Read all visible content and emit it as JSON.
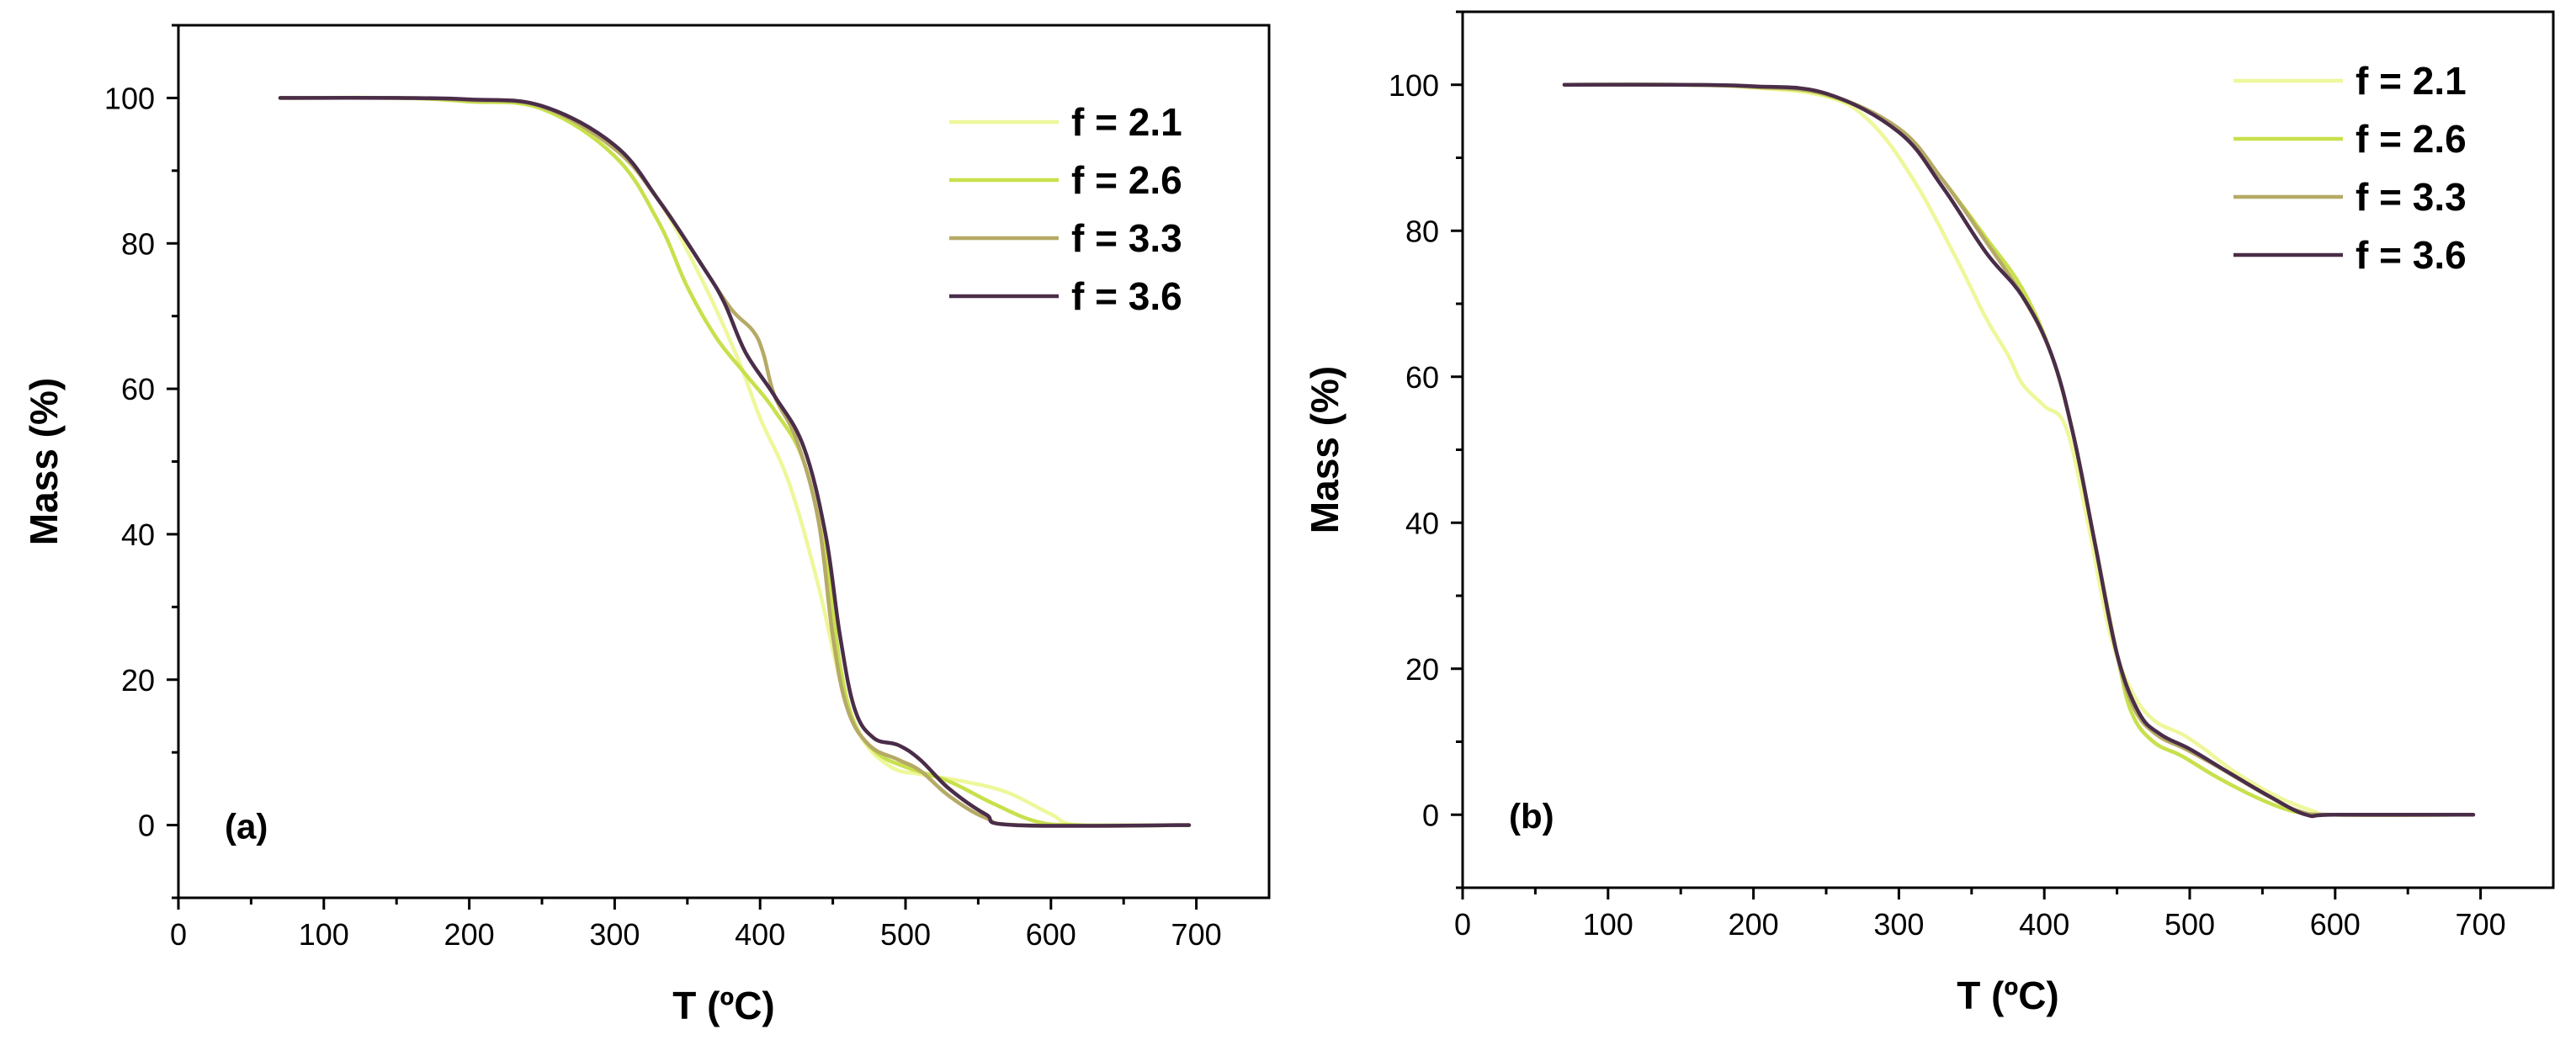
{
  "chart_data": [
    {
      "type": "line",
      "panel": "(a)",
      "xlabel": "T (ºC)",
      "ylabel": "Mass (%)",
      "xlim": [
        0,
        750
      ],
      "ylim": [
        -10,
        110
      ],
      "xticks": [
        0,
        100,
        200,
        300,
        400,
        500,
        600,
        700
      ],
      "yticks": [
        0,
        20,
        40,
        60,
        80,
        100
      ],
      "legend_position": "top-right",
      "series": [
        {
          "name": "f = 2.1",
          "color": "#eef79a",
          "points": [
            [
              70,
              100
            ],
            [
              150,
              100
            ],
            [
              200,
              99.6
            ],
            [
              250,
              98.6
            ],
            [
              300,
              93
            ],
            [
              330,
              86
            ],
            [
              360,
              75
            ],
            [
              385,
              64
            ],
            [
              400,
              56
            ],
            [
              420,
              47
            ],
            [
              440,
              33
            ],
            [
              455,
              20
            ],
            [
              470,
              12
            ],
            [
              490,
              8
            ],
            [
              510,
              7
            ],
            [
              540,
              6
            ],
            [
              570,
              4.5
            ],
            [
              600,
              1.5
            ],
            [
              620,
              0
            ],
            [
              695,
              0
            ]
          ]
        },
        {
          "name": "f = 2.6",
          "color": "#c8e04c",
          "points": [
            [
              70,
              100
            ],
            [
              150,
              100
            ],
            [
              200,
              99.5
            ],
            [
              250,
              98.5
            ],
            [
              300,
              92
            ],
            [
              330,
              83
            ],
            [
              350,
              74
            ],
            [
              370,
              67
            ],
            [
              390,
              62
            ],
            [
              410,
              57
            ],
            [
              430,
              50
            ],
            [
              445,
              37
            ],
            [
              455,
              22
            ],
            [
              465,
              14
            ],
            [
              480,
              10
            ],
            [
              500,
              8
            ],
            [
              530,
              6
            ],
            [
              560,
              3
            ],
            [
              590,
              0.5
            ],
            [
              620,
              0
            ],
            [
              695,
              0
            ]
          ]
        },
        {
          "name": "f = 3.3",
          "color": "#b5aa66",
          "points": [
            [
              70,
              100
            ],
            [
              150,
              100
            ],
            [
              200,
              99.7
            ],
            [
              250,
              98.8
            ],
            [
              300,
              93
            ],
            [
              330,
              86
            ],
            [
              360,
              77
            ],
            [
              380,
              71
            ],
            [
              395,
              68
            ],
            [
              402,
              65
            ],
            [
              410,
              59
            ],
            [
              425,
              53
            ],
            [
              440,
              42
            ],
            [
              450,
              26
            ],
            [
              460,
              16
            ],
            [
              475,
              11
            ],
            [
              495,
              9
            ],
            [
              510,
              7.5
            ],
            [
              530,
              4
            ],
            [
              555,
              1
            ],
            [
              580,
              0
            ],
            [
              695,
              0
            ]
          ]
        },
        {
          "name": "f = 3.6",
          "color": "#4a2d49",
          "points": [
            [
              70,
              100
            ],
            [
              150,
              100
            ],
            [
              200,
              99.8
            ],
            [
              250,
              98.9
            ],
            [
              300,
              93.5
            ],
            [
              330,
              86
            ],
            [
              360,
              77
            ],
            [
              375,
              72
            ],
            [
              390,
              65
            ],
            [
              410,
              59
            ],
            [
              430,
              52
            ],
            [
              445,
              40
            ],
            [
              455,
              26
            ],
            [
              465,
              16
            ],
            [
              478,
              12
            ],
            [
              495,
              11
            ],
            [
              510,
              9
            ],
            [
              530,
              5
            ],
            [
              555,
              1.5
            ],
            [
              575,
              0
            ],
            [
              695,
              0
            ]
          ]
        }
      ]
    },
    {
      "type": "line",
      "panel": "(b)",
      "xlabel": "T (ºC)",
      "ylabel": "Mass (%)",
      "xlim": [
        0,
        750
      ],
      "ylim": [
        -10,
        110
      ],
      "xticks": [
        0,
        100,
        200,
        300,
        400,
        500,
        600,
        700
      ],
      "yticks": [
        0,
        20,
        40,
        60,
        80,
        100
      ],
      "legend_position": "top-right",
      "series": [
        {
          "name": "f = 2.1",
          "color": "#eef79a",
          "points": [
            [
              70,
              100
            ],
            [
              150,
              100
            ],
            [
              200,
              99.6
            ],
            [
              250,
              98.4
            ],
            [
              280,
              95
            ],
            [
              310,
              87
            ],
            [
              340,
              76
            ],
            [
              360,
              68
            ],
            [
              375,
              63
            ],
            [
              385,
              59
            ],
            [
              400,
              56
            ],
            [
              415,
              53
            ],
            [
              430,
              40
            ],
            [
              445,
              25
            ],
            [
              460,
              17
            ],
            [
              475,
              13
            ],
            [
              495,
              11
            ],
            [
              510,
              9
            ],
            [
              530,
              6
            ],
            [
              560,
              2.5
            ],
            [
              585,
              0.5
            ],
            [
              600,
              0
            ],
            [
              695,
              0
            ]
          ]
        },
        {
          "name": "f = 2.6",
          "color": "#c8e04c",
          "points": [
            [
              70,
              100
            ],
            [
              150,
              100
            ],
            [
              200,
              99.7
            ],
            [
              250,
              98.6
            ],
            [
              300,
              94
            ],
            [
              330,
              87
            ],
            [
              360,
              79
            ],
            [
              385,
              72
            ],
            [
              405,
              63
            ],
            [
              420,
              52
            ],
            [
              435,
              37
            ],
            [
              450,
              22
            ],
            [
              460,
              14
            ],
            [
              475,
              10
            ],
            [
              495,
              8
            ],
            [
              520,
              5
            ],
            [
              550,
              2
            ],
            [
              575,
              0.3
            ],
            [
              600,
              0
            ],
            [
              695,
              0
            ]
          ]
        },
        {
          "name": "f = 3.3",
          "color": "#b5aa66",
          "points": [
            [
              70,
              100
            ],
            [
              150,
              100
            ],
            [
              200,
              99.7
            ],
            [
              250,
              98.7
            ],
            [
              300,
              94
            ],
            [
              330,
              87
            ],
            [
              360,
              78.5
            ],
            [
              385,
              71
            ],
            [
              405,
              63
            ],
            [
              420,
              52
            ],
            [
              435,
              37
            ],
            [
              450,
              22
            ],
            [
              462,
              14.5
            ],
            [
              477,
              11
            ],
            [
              497,
              9
            ],
            [
              520,
              6.5
            ],
            [
              550,
              3
            ],
            [
              575,
              0.5
            ],
            [
              600,
              0
            ],
            [
              695,
              0
            ]
          ]
        },
        {
          "name": "f = 3.6",
          "color": "#4a2d49",
          "points": [
            [
              70,
              100
            ],
            [
              150,
              100
            ],
            [
              200,
              99.8
            ],
            [
              250,
              98.8
            ],
            [
              300,
              93.5
            ],
            [
              330,
              86
            ],
            [
              360,
              77
            ],
            [
              385,
              71
            ],
            [
              405,
              63
            ],
            [
              420,
              52
            ],
            [
              435,
              37
            ],
            [
              450,
              22
            ],
            [
              465,
              14
            ],
            [
              480,
              11
            ],
            [
              500,
              9
            ],
            [
              525,
              6
            ],
            [
              555,
              2.5
            ],
            [
              580,
              0
            ],
            [
              600,
              0
            ],
            [
              695,
              0
            ]
          ]
        }
      ]
    }
  ]
}
